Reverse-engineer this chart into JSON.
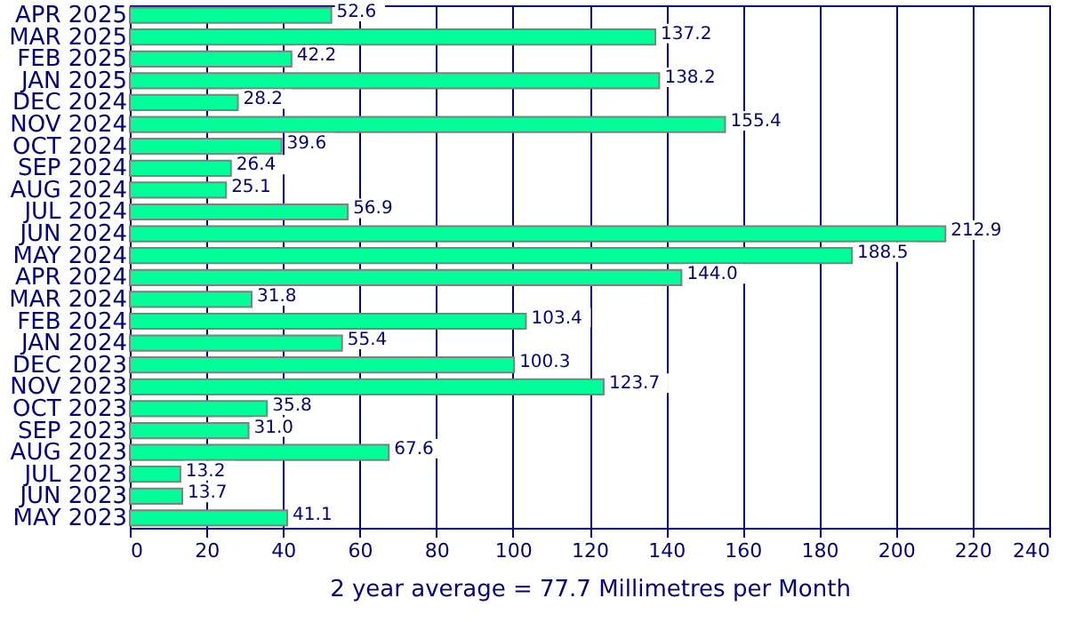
{
  "chart_data": {
    "type": "bar",
    "orientation": "horizontal",
    "xlabel": "2 year average = 77.7 Millimetres per Month",
    "categories": [
      "APR 2025",
      "MAR 2025",
      "FEB 2025",
      "JAN 2025",
      "DEC 2024",
      "NOV 2024",
      "OCT 2024",
      "SEP 2024",
      "AUG 2024",
      "JUL 2024",
      "JUN 2024",
      "MAY 2024",
      "APR 2024",
      "MAR 2024",
      "FEB 2024",
      "JAN 2024",
      "DEC 2023",
      "NOV 2023",
      "OCT 2023",
      "SEP 2023",
      "AUG 2023",
      "JUL 2023",
      "JUN 2023",
      "MAY 2023"
    ],
    "values": [
      52.6,
      137.2,
      42.2,
      138.2,
      28.2,
      155.4,
      39.6,
      26.4,
      25.1,
      56.9,
      212.9,
      188.5,
      144.0,
      31.8,
      103.4,
      55.4,
      100.3,
      123.7,
      35.8,
      31.0,
      67.6,
      13.2,
      13.7,
      41.1
    ],
    "value_labels": [
      "52.6",
      "137.2",
      "42.2",
      "138.2",
      "28.2",
      "155.4",
      "39.6",
      "26.4",
      "25.1",
      "56.9",
      "212.9",
      "188.5",
      "144.0",
      "31.8",
      "103.4",
      "55.4",
      "100.3",
      "123.7",
      "35.8",
      "31.0",
      "67.6",
      "13.2",
      "13.7",
      "41.1"
    ],
    "color": "#00ff99",
    "xlim": [
      0,
      240
    ],
    "xticks": [
      0,
      20,
      40,
      60,
      80,
      100,
      120,
      140,
      160,
      180,
      200,
      220,
      240
    ],
    "grid": "x"
  }
}
